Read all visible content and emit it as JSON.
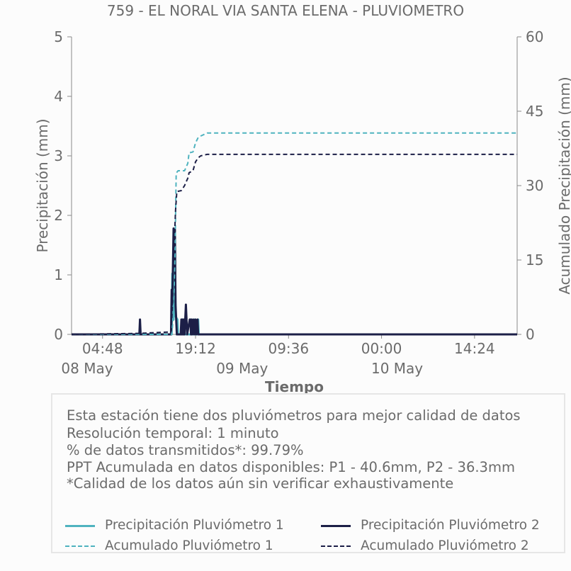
{
  "chart_data": {
    "type": "line",
    "title": "759 - EL NORAL VIA SANTA ELENA - PLUVIOMETRO",
    "xlabel": "Tiempo",
    "ylabel_left": "Precipitación (mm)",
    "ylabel_right": "Acumulado Precipitación (mm)",
    "ylim_left": [
      0,
      5
    ],
    "ylim_right": [
      0,
      60
    ],
    "yticks_left": [
      "0",
      "1",
      "2",
      "3",
      "4",
      "5"
    ],
    "yticks_right": [
      "0",
      "15",
      "30",
      "45",
      "60"
    ],
    "x_range": [
      "2024-05-08 00:00",
      "2024-05-10 21:00"
    ],
    "xticks": [
      {
        "x": "05-08 04:48",
        "time": "04:48",
        "date": ""
      },
      {
        "x": "05-08 19:12",
        "time": "19:12",
        "date": ""
      },
      {
        "x": "05-09 09:36",
        "time": "09:36",
        "date": ""
      },
      {
        "x": "05-10 00:00",
        "time": "00:00",
        "date": ""
      },
      {
        "x": "05-10 14:24",
        "time": "14:24",
        "date": ""
      }
    ],
    "date_labels": [
      {
        "x": "05-08 00:00",
        "label": "08 May"
      },
      {
        "x": "05-09 00:00",
        "label": "09 May"
      },
      {
        "x": "05-10 00:00",
        "label": "10 May"
      }
    ],
    "series": [
      {
        "name": "Precipitación Pluviómetro 1",
        "axis": "left",
        "style": "solid",
        "color": "#4fb3bf",
        "points": [
          [
            "05-08 00:00",
            0
          ],
          [
            "05-08 15:30",
            0
          ],
          [
            "05-08 15:36",
            1.02
          ],
          [
            "05-08 15:42",
            0.8
          ],
          [
            "05-08 15:48",
            0.25
          ],
          [
            "05-08 16:00",
            1.7
          ],
          [
            "05-08 16:06",
            0.3
          ],
          [
            "05-08 16:24",
            0.25
          ],
          [
            "05-08 16:30",
            0
          ],
          [
            "05-08 17:00",
            0
          ],
          [
            "05-08 17:06",
            0.25
          ],
          [
            "05-08 17:12",
            0.1
          ],
          [
            "05-08 17:18",
            0.25
          ],
          [
            "05-08 17:24",
            0
          ],
          [
            "05-08 18:30",
            0
          ],
          [
            "05-08 18:36",
            0.25
          ],
          [
            "05-08 18:42",
            0
          ],
          [
            "05-08 19:00",
            0
          ],
          [
            "05-08 19:06",
            0.25
          ],
          [
            "05-08 19:12",
            0
          ],
          [
            "05-08 19:30",
            0
          ],
          [
            "05-08 19:36",
            0.25
          ],
          [
            "05-08 19:42",
            0
          ],
          [
            "05-10 21:00",
            0
          ]
        ]
      },
      {
        "name": "Precipitación Pluviómetro 2",
        "axis": "left",
        "style": "solid",
        "color": "#1c1f47",
        "points": [
          [
            "05-08 00:00",
            0
          ],
          [
            "05-08 10:30",
            0
          ],
          [
            "05-08 10:36",
            0.25
          ],
          [
            "05-08 10:42",
            0
          ],
          [
            "05-08 15:24",
            0
          ],
          [
            "05-08 15:30",
            0.75
          ],
          [
            "05-08 15:36",
            0.5
          ],
          [
            "05-08 15:48",
            1.78
          ],
          [
            "05-08 15:54",
            1.1
          ],
          [
            "05-08 16:00",
            1.76
          ],
          [
            "05-08 16:06",
            0.5
          ],
          [
            "05-08 16:12",
            0.25
          ],
          [
            "05-08 16:18",
            0
          ],
          [
            "05-08 16:54",
            0
          ],
          [
            "05-08 17:00",
            0.25
          ],
          [
            "05-08 17:06",
            0
          ],
          [
            "05-08 17:12",
            0.25
          ],
          [
            "05-08 17:18",
            0
          ],
          [
            "05-08 17:24",
            0.25
          ],
          [
            "05-08 17:30",
            0
          ],
          [
            "05-08 17:42",
            0.5
          ],
          [
            "05-08 17:48",
            0.25
          ],
          [
            "05-08 17:54",
            0
          ],
          [
            "05-08 18:18",
            0.25
          ],
          [
            "05-08 18:24",
            0.25
          ],
          [
            "05-08 18:30",
            0
          ],
          [
            "05-08 18:36",
            0.25
          ],
          [
            "05-08 18:42",
            0
          ],
          [
            "05-08 18:54",
            0.25
          ],
          [
            "05-08 19:00",
            0
          ],
          [
            "05-08 19:12",
            0.25
          ],
          [
            "05-08 19:18",
            0
          ],
          [
            "05-08 19:30",
            0.25
          ],
          [
            "05-08 19:36",
            0
          ],
          [
            "05-10 21:00",
            0
          ]
        ]
      },
      {
        "name": "Acumulado Pluviómetro 1",
        "axis": "right",
        "style": "dashed",
        "color": "#4fb3bf",
        "points": [
          [
            "05-08 00:00",
            0
          ],
          [
            "05-08 15:30",
            0
          ],
          [
            "05-08 15:36",
            1
          ],
          [
            "05-08 15:48",
            5
          ],
          [
            "05-08 16:00",
            15
          ],
          [
            "05-08 16:12",
            32.5
          ],
          [
            "05-08 16:30",
            33
          ],
          [
            "05-08 17:30",
            33
          ],
          [
            "05-08 18:00",
            34.5
          ],
          [
            "05-08 18:12",
            36.6
          ],
          [
            "05-08 18:48",
            36.8
          ],
          [
            "05-08 19:12",
            38.6
          ],
          [
            "05-08 19:36",
            39.7
          ],
          [
            "05-08 20:00",
            40
          ],
          [
            "05-08 21:00",
            40.6
          ],
          [
            "05-10 21:00",
            40.6
          ]
        ]
      },
      {
        "name": "Acumulado Pluviómetro 2",
        "axis": "right",
        "style": "dashed",
        "color": "#1c1f47",
        "points": [
          [
            "05-08 00:00",
            0
          ],
          [
            "05-08 10:30",
            0.2
          ],
          [
            "05-08 15:24",
            0.5
          ],
          [
            "05-08 15:36",
            5
          ],
          [
            "05-08 15:48",
            15
          ],
          [
            "05-08 16:06",
            25
          ],
          [
            "05-08 16:18",
            28.8
          ],
          [
            "05-08 17:00",
            29
          ],
          [
            "05-08 17:30",
            30
          ],
          [
            "05-08 18:00",
            31.5
          ],
          [
            "05-08 18:12",
            32.6
          ],
          [
            "05-08 18:48",
            33
          ],
          [
            "05-08 19:12",
            34.8
          ],
          [
            "05-08 19:36",
            35.6
          ],
          [
            "05-08 20:00",
            36
          ],
          [
            "05-08 21:00",
            36.3
          ],
          [
            "05-10 21:00",
            36.3
          ]
        ]
      }
    ],
    "legend": [
      {
        "label": "Precipitación Pluviómetro 1",
        "color": "#4fb3bf",
        "style": "solid"
      },
      {
        "label": "Precipitación Pluviómetro 2",
        "color": "#1c1f47",
        "style": "solid"
      },
      {
        "label": "Acumulado Pluviómetro 1",
        "color": "#4fb3bf",
        "style": "dashed"
      },
      {
        "label": "Acumulado Pluviómetro 2",
        "color": "#1c1f47",
        "style": "dashed"
      }
    ],
    "grid": false
  },
  "info": {
    "line1": "Esta estación tiene dos pluviómetros para mejor calidad de datos",
    "line2": "Resolución temporal: 1 minuto",
    "line3": "% de datos transmitidos*: 99.79%",
    "line4": "PPT Acumulada en datos disponibles: P1 - 40.6mm, P2 - 36.3mm",
    "line5": "*Calidad de los datos aún sin verificar exhaustivamente"
  }
}
